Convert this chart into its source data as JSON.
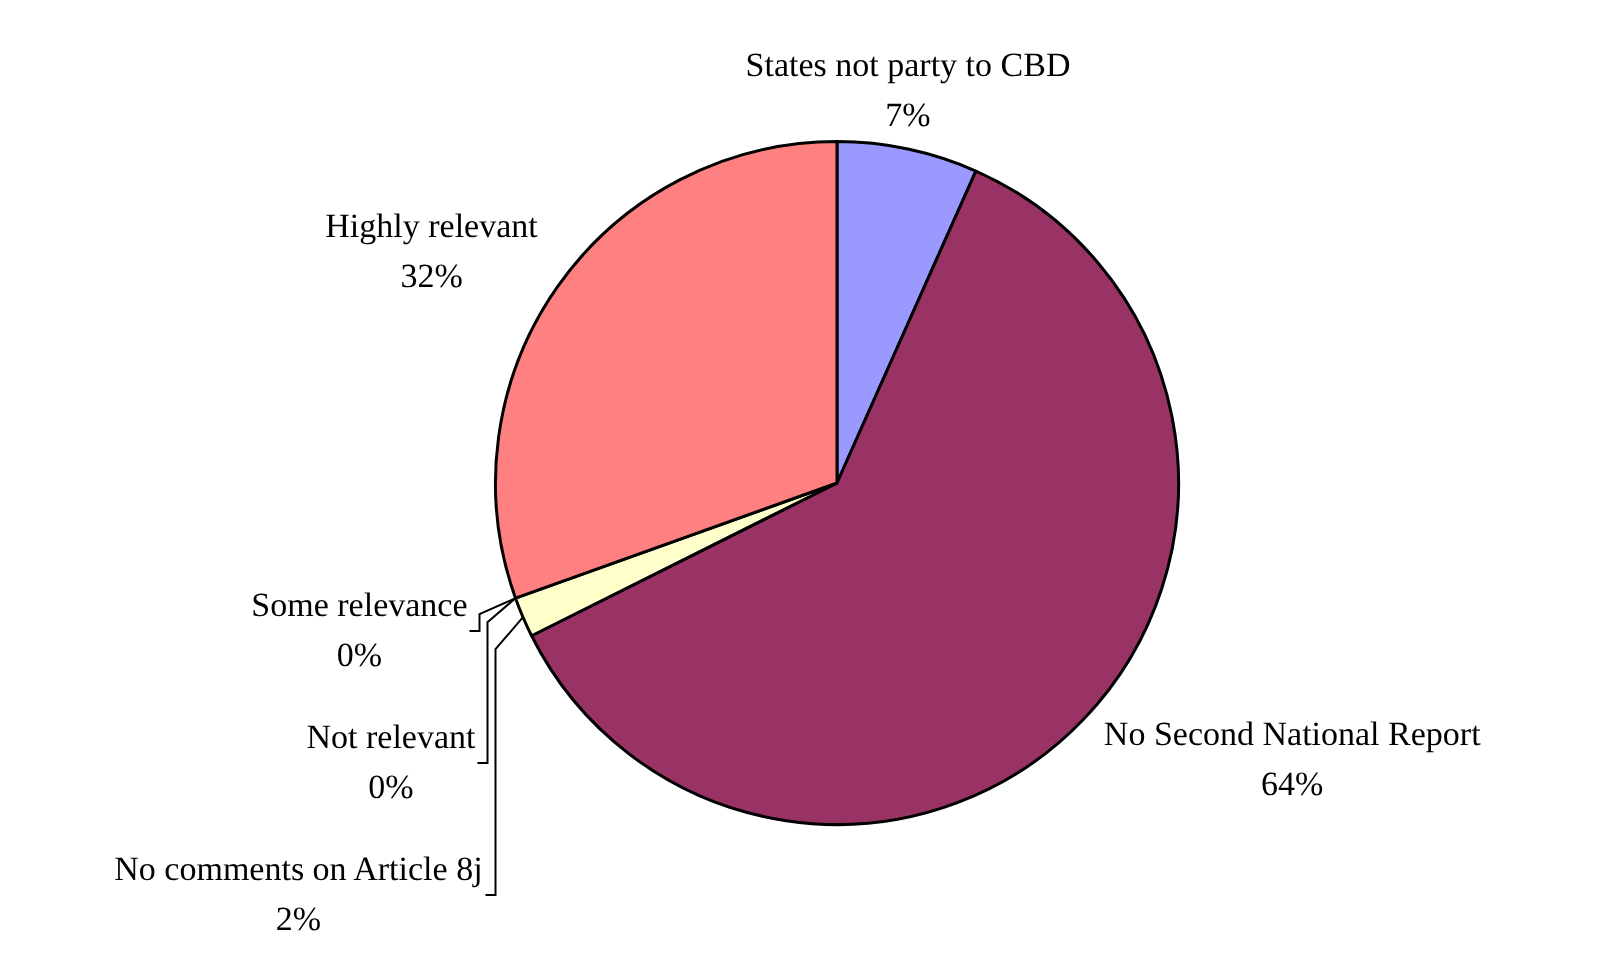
{
  "chart_data": {
    "type": "pie",
    "categories": [
      "States not party to CBD",
      "No Second National Report",
      "No comments on Article 8j",
      "Not relevant",
      "Some relevance",
      "Highly relevant"
    ],
    "values": [
      7,
      64,
      2,
      0,
      0,
      32
    ],
    "value_labels": [
      "7%",
      "64%",
      "2%",
      "0%",
      "0%",
      "32%"
    ],
    "colors": [
      "#9999ff",
      "#993366",
      "#ffffcc",
      "#00ffff",
      "#ccffcc",
      "#ff8080"
    ]
  }
}
